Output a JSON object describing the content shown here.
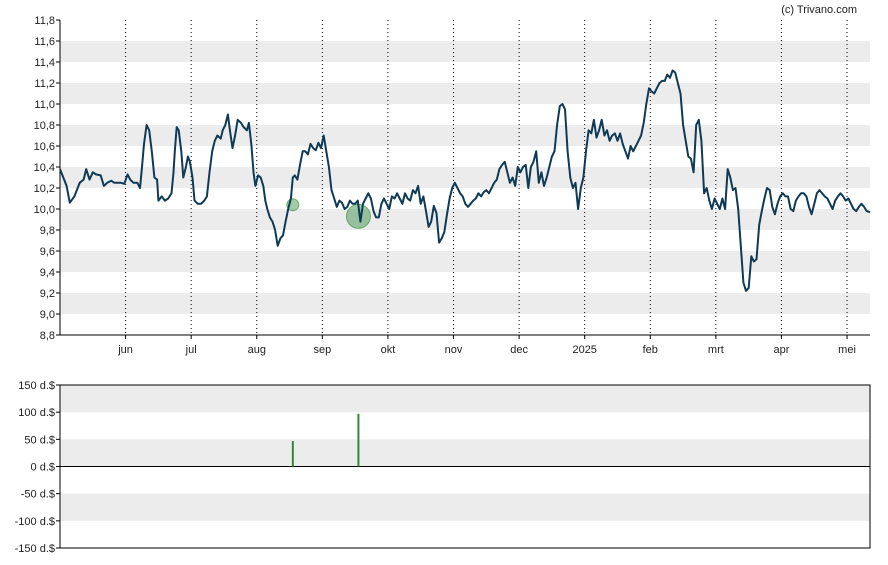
{
  "copyright": "(c) Trivano.com",
  "colors": {
    "band": "#ececec",
    "line": "#0e3a56",
    "event_fill": "#2e8b3a",
    "volume": "#2e8b3a",
    "axis": "#000000"
  },
  "chart_data": [
    {
      "type": "line",
      "name": "price",
      "ylim": [
        8.8,
        11.8
      ],
      "yticks": [
        "8,8",
        "9,0",
        "9,2",
        "9,4",
        "9,6",
        "9,8",
        "10,0",
        "10,2",
        "10,4",
        "10,6",
        "10,8",
        "11,0",
        "11,2",
        "11,4",
        "11,6",
        "11,8"
      ],
      "xlim": [
        0,
        12.35
      ],
      "month_ticks": [
        {
          "label": "jun",
          "x": 1
        },
        {
          "label": "jul",
          "x": 2
        },
        {
          "label": "aug",
          "x": 3
        },
        {
          "label": "sep",
          "x": 4
        },
        {
          "label": "okt",
          "x": 5
        },
        {
          "label": "nov",
          "x": 6
        },
        {
          "label": "dec",
          "x": 7
        },
        {
          "label": "2025",
          "x": 8
        },
        {
          "label": "feb",
          "x": 9
        },
        {
          "label": "mrt",
          "x": 10
        },
        {
          "label": "apr",
          "x": 11
        },
        {
          "label": "mei",
          "x": 12
        }
      ],
      "points": [
        [
          0.0,
          10.38
        ],
        [
          0.05,
          10.3
        ],
        [
          0.1,
          10.22
        ],
        [
          0.15,
          10.06
        ],
        [
          0.22,
          10.12
        ],
        [
          0.3,
          10.25
        ],
        [
          0.36,
          10.28
        ],
        [
          0.4,
          10.38
        ],
        [
          0.45,
          10.28
        ],
        [
          0.5,
          10.35
        ],
        [
          0.55,
          10.33
        ],
        [
          0.62,
          10.32
        ],
        [
          0.67,
          10.22
        ],
        [
          0.72,
          10.25
        ],
        [
          0.78,
          10.27
        ],
        [
          0.83,
          10.25
        ],
        [
          0.88,
          10.25
        ],
        [
          0.93,
          10.25
        ],
        [
          0.98,
          10.24
        ],
        [
          1.03,
          10.33
        ],
        [
          1.07,
          10.28
        ],
        [
          1.12,
          10.25
        ],
        [
          1.18,
          10.25
        ],
        [
          1.22,
          10.2
        ],
        [
          1.25,
          10.4
        ],
        [
          1.28,
          10.62
        ],
        [
          1.32,
          10.8
        ],
        [
          1.36,
          10.75
        ],
        [
          1.4,
          10.55
        ],
        [
          1.44,
          10.3
        ],
        [
          1.48,
          10.28
        ],
        [
          1.5,
          10.08
        ],
        [
          1.55,
          10.12
        ],
        [
          1.6,
          10.08
        ],
        [
          1.65,
          10.1
        ],
        [
          1.7,
          10.15
        ],
        [
          1.73,
          10.35
        ],
        [
          1.75,
          10.55
        ],
        [
          1.78,
          10.78
        ],
        [
          1.81,
          10.75
        ],
        [
          1.85,
          10.55
        ],
        [
          1.88,
          10.3
        ],
        [
          1.92,
          10.4
        ],
        [
          1.95,
          10.5
        ],
        [
          1.98,
          10.45
        ],
        [
          2.02,
          10.3
        ],
        [
          2.05,
          10.08
        ],
        [
          2.1,
          10.05
        ],
        [
          2.15,
          10.05
        ],
        [
          2.2,
          10.08
        ],
        [
          2.24,
          10.12
        ],
        [
          2.28,
          10.35
        ],
        [
          2.32,
          10.55
        ],
        [
          2.36,
          10.65
        ],
        [
          2.4,
          10.7
        ],
        [
          2.45,
          10.67
        ],
        [
          2.48,
          10.75
        ],
        [
          2.52,
          10.8
        ],
        [
          2.56,
          10.9
        ],
        [
          2.59,
          10.75
        ],
        [
          2.63,
          10.58
        ],
        [
          2.67,
          10.7
        ],
        [
          2.71,
          10.85
        ],
        [
          2.76,
          10.82
        ],
        [
          2.8,
          10.78
        ],
        [
          2.85,
          10.75
        ],
        [
          2.88,
          10.82
        ],
        [
          2.92,
          10.6
        ],
        [
          2.95,
          10.35
        ],
        [
          2.98,
          10.22
        ],
        [
          3.02,
          10.32
        ],
        [
          3.06,
          10.3
        ],
        [
          3.1,
          10.22
        ],
        [
          3.13,
          10.08
        ],
        [
          3.16,
          10.0
        ],
        [
          3.2,
          9.92
        ],
        [
          3.24,
          9.88
        ],
        [
          3.28,
          9.8
        ],
        [
          3.32,
          9.65
        ],
        [
          3.36,
          9.72
        ],
        [
          3.4,
          9.75
        ],
        [
          3.44,
          9.88
        ],
        [
          3.48,
          10.0
        ],
        [
          3.52,
          10.1
        ],
        [
          3.55,
          10.3
        ],
        [
          3.58,
          10.32
        ],
        [
          3.62,
          10.28
        ],
        [
          3.66,
          10.42
        ],
        [
          3.7,
          10.55
        ],
        [
          3.74,
          10.55
        ],
        [
          3.78,
          10.52
        ],
        [
          3.82,
          10.62
        ],
        [
          3.86,
          10.58
        ],
        [
          3.9,
          10.56
        ],
        [
          3.94,
          10.63
        ],
        [
          3.98,
          10.58
        ],
        [
          4.02,
          10.7
        ],
        [
          4.06,
          10.55
        ],
        [
          4.1,
          10.4
        ],
        [
          4.14,
          10.18
        ],
        [
          4.18,
          10.1
        ],
        [
          4.22,
          10.02
        ],
        [
          4.26,
          10.08
        ],
        [
          4.3,
          10.06
        ],
        [
          4.34,
          10.0
        ],
        [
          4.38,
          10.02
        ],
        [
          4.42,
          10.08
        ],
        [
          4.46,
          10.05
        ],
        [
          4.5,
          10.05
        ],
        [
          4.54,
          10.08
        ],
        [
          4.58,
          9.88
        ],
        [
          4.62,
          10.05
        ],
        [
          4.66,
          10.1
        ],
        [
          4.7,
          10.15
        ],
        [
          4.74,
          10.1
        ],
        [
          4.78,
          9.98
        ],
        [
          4.82,
          9.92
        ],
        [
          4.86,
          9.92
        ],
        [
          4.9,
          10.05
        ],
        [
          4.94,
          10.1
        ],
        [
          4.98,
          10.05
        ],
        [
          5.02,
          10.0
        ],
        [
          5.06,
          10.12
        ],
        [
          5.1,
          10.1
        ],
        [
          5.14,
          10.15
        ],
        [
          5.18,
          10.1
        ],
        [
          5.22,
          10.05
        ],
        [
          5.26,
          10.15
        ],
        [
          5.3,
          10.1
        ],
        [
          5.34,
          10.08
        ],
        [
          5.38,
          10.18
        ],
        [
          5.42,
          10.15
        ],
        [
          5.46,
          10.22
        ],
        [
          5.5,
          10.05
        ],
        [
          5.54,
          10.12
        ],
        [
          5.58,
          9.98
        ],
        [
          5.62,
          9.83
        ],
        [
          5.66,
          9.88
        ],
        [
          5.7,
          10.03
        ],
        [
          5.74,
          9.96
        ],
        [
          5.78,
          9.68
        ],
        [
          5.82,
          9.72
        ],
        [
          5.86,
          9.78
        ],
        [
          5.9,
          9.95
        ],
        [
          5.94,
          10.1
        ],
        [
          5.98,
          10.2
        ],
        [
          6.02,
          10.25
        ],
        [
          6.06,
          10.2
        ],
        [
          6.1,
          10.15
        ],
        [
          6.14,
          10.12
        ],
        [
          6.18,
          10.05
        ],
        [
          6.22,
          10.02
        ],
        [
          6.26,
          10.05
        ],
        [
          6.3,
          10.08
        ],
        [
          6.34,
          10.1
        ],
        [
          6.38,
          10.15
        ],
        [
          6.42,
          10.12
        ],
        [
          6.46,
          10.16
        ],
        [
          6.5,
          10.18
        ],
        [
          6.54,
          10.15
        ],
        [
          6.58,
          10.2
        ],
        [
          6.62,
          10.25
        ],
        [
          6.66,
          10.28
        ],
        [
          6.7,
          10.38
        ],
        [
          6.74,
          10.42
        ],
        [
          6.78,
          10.45
        ],
        [
          6.82,
          10.35
        ],
        [
          6.86,
          10.25
        ],
        [
          6.9,
          10.3
        ],
        [
          6.94,
          10.22
        ],
        [
          6.98,
          10.4
        ],
        [
          7.02,
          10.35
        ],
        [
          7.06,
          10.4
        ],
        [
          7.1,
          10.42
        ],
        [
          7.14,
          10.2
        ],
        [
          7.18,
          10.4
        ],
        [
          7.22,
          10.45
        ],
        [
          7.26,
          10.55
        ],
        [
          7.3,
          10.25
        ],
        [
          7.34,
          10.35
        ],
        [
          7.38,
          10.22
        ],
        [
          7.42,
          10.3
        ],
        [
          7.46,
          10.4
        ],
        [
          7.5,
          10.5
        ],
        [
          7.54,
          10.55
        ],
        [
          7.58,
          10.8
        ],
        [
          7.62,
          10.98
        ],
        [
          7.66,
          11.0
        ],
        [
          7.7,
          10.95
        ],
        [
          7.74,
          10.55
        ],
        [
          7.78,
          10.3
        ],
        [
          7.82,
          10.2
        ],
        [
          7.86,
          10.25
        ],
        [
          7.9,
          10.0
        ],
        [
          7.94,
          10.2
        ],
        [
          7.98,
          10.3
        ],
        [
          8.02,
          10.55
        ],
        [
          8.06,
          10.75
        ],
        [
          8.1,
          10.72
        ],
        [
          8.14,
          10.85
        ],
        [
          8.18,
          10.68
        ],
        [
          8.22,
          10.75
        ],
        [
          8.26,
          10.85
        ],
        [
          8.3,
          10.7
        ],
        [
          8.34,
          10.75
        ],
        [
          8.38,
          10.65
        ],
        [
          8.42,
          10.7
        ],
        [
          8.46,
          10.72
        ],
        [
          8.5,
          10.65
        ],
        [
          8.54,
          10.72
        ],
        [
          8.58,
          10.62
        ],
        [
          8.62,
          10.55
        ],
        [
          8.66,
          10.48
        ],
        [
          8.7,
          10.6
        ],
        [
          8.74,
          10.55
        ],
        [
          8.78,
          10.6
        ],
        [
          8.82,
          10.65
        ],
        [
          8.86,
          10.7
        ],
        [
          8.9,
          10.82
        ],
        [
          8.94,
          11.0
        ],
        [
          8.98,
          11.15
        ],
        [
          9.02,
          11.12
        ],
        [
          9.06,
          11.1
        ],
        [
          9.1,
          11.15
        ],
        [
          9.14,
          11.2
        ],
        [
          9.18,
          11.22
        ],
        [
          9.22,
          11.22
        ],
        [
          9.26,
          11.28
        ],
        [
          9.3,
          11.25
        ],
        [
          9.34,
          11.32
        ],
        [
          9.38,
          11.3
        ],
        [
          9.42,
          11.2
        ],
        [
          9.46,
          11.1
        ],
        [
          9.5,
          10.8
        ],
        [
          9.54,
          10.65
        ],
        [
          9.58,
          10.5
        ],
        [
          9.62,
          10.48
        ],
        [
          9.66,
          10.35
        ],
        [
          9.7,
          10.8
        ],
        [
          9.74,
          10.85
        ],
        [
          9.78,
          10.65
        ],
        [
          9.82,
          10.15
        ],
        [
          9.86,
          10.2
        ],
        [
          9.9,
          10.08
        ],
        [
          9.94,
          10.0
        ],
        [
          9.98,
          10.1
        ],
        [
          10.02,
          10.05
        ],
        [
          10.06,
          10.0
        ],
        [
          10.1,
          10.1
        ],
        [
          10.14,
          10.0
        ],
        [
          10.18,
          10.38
        ],
        [
          10.22,
          10.3
        ],
        [
          10.26,
          10.18
        ],
        [
          10.3,
          10.2
        ],
        [
          10.34,
          10.0
        ],
        [
          10.38,
          9.65
        ],
        [
          10.42,
          9.3
        ],
        [
          10.46,
          9.22
        ],
        [
          10.5,
          9.25
        ],
        [
          10.54,
          9.55
        ],
        [
          10.58,
          9.5
        ],
        [
          10.62,
          9.52
        ],
        [
          10.66,
          9.85
        ],
        [
          10.7,
          9.98
        ],
        [
          10.74,
          10.1
        ],
        [
          10.78,
          10.2
        ],
        [
          10.82,
          10.18
        ],
        [
          10.86,
          10.02
        ],
        [
          10.9,
          9.95
        ],
        [
          10.94,
          10.05
        ],
        [
          10.98,
          10.12
        ],
        [
          11.02,
          10.15
        ],
        [
          11.06,
          10.12
        ],
        [
          11.1,
          10.12
        ],
        [
          11.14,
          10.0
        ],
        [
          11.18,
          9.98
        ],
        [
          11.22,
          10.08
        ],
        [
          11.26,
          10.12
        ],
        [
          11.3,
          10.15
        ],
        [
          11.34,
          10.15
        ],
        [
          11.38,
          10.12
        ],
        [
          11.42,
          10.02
        ],
        [
          11.46,
          9.95
        ],
        [
          11.5,
          10.05
        ],
        [
          11.54,
          10.15
        ],
        [
          11.58,
          10.18
        ],
        [
          11.62,
          10.15
        ],
        [
          11.66,
          10.12
        ],
        [
          11.7,
          10.1
        ],
        [
          11.74,
          10.05
        ],
        [
          11.78,
          10.0
        ],
        [
          11.82,
          10.08
        ],
        [
          11.86,
          10.12
        ],
        [
          11.9,
          10.15
        ],
        [
          11.94,
          10.12
        ],
        [
          11.98,
          10.08
        ],
        [
          12.02,
          10.1
        ],
        [
          12.06,
          10.05
        ],
        [
          12.1,
          10.0
        ],
        [
          12.14,
          9.98
        ],
        [
          12.18,
          10.02
        ],
        [
          12.22,
          10.05
        ],
        [
          12.26,
          10.02
        ],
        [
          12.3,
          9.98
        ],
        [
          12.35,
          9.97
        ]
      ],
      "events": [
        {
          "x": 3.55,
          "y": 10.04,
          "size": "small"
        },
        {
          "x": 4.55,
          "y": 9.93,
          "size": "large"
        }
      ]
    },
    {
      "type": "bar",
      "name": "volume",
      "ylim": [
        -150,
        150
      ],
      "yticks": [
        "150 d.$",
        "100 d.$",
        "50 d.$",
        "0 d.$",
        "-50 d.$",
        "-100 d.$",
        "-150 d.$"
      ],
      "bars": [
        {
          "x": 3.55,
          "value": 47
        },
        {
          "x": 4.55,
          "value": 97
        }
      ]
    }
  ]
}
